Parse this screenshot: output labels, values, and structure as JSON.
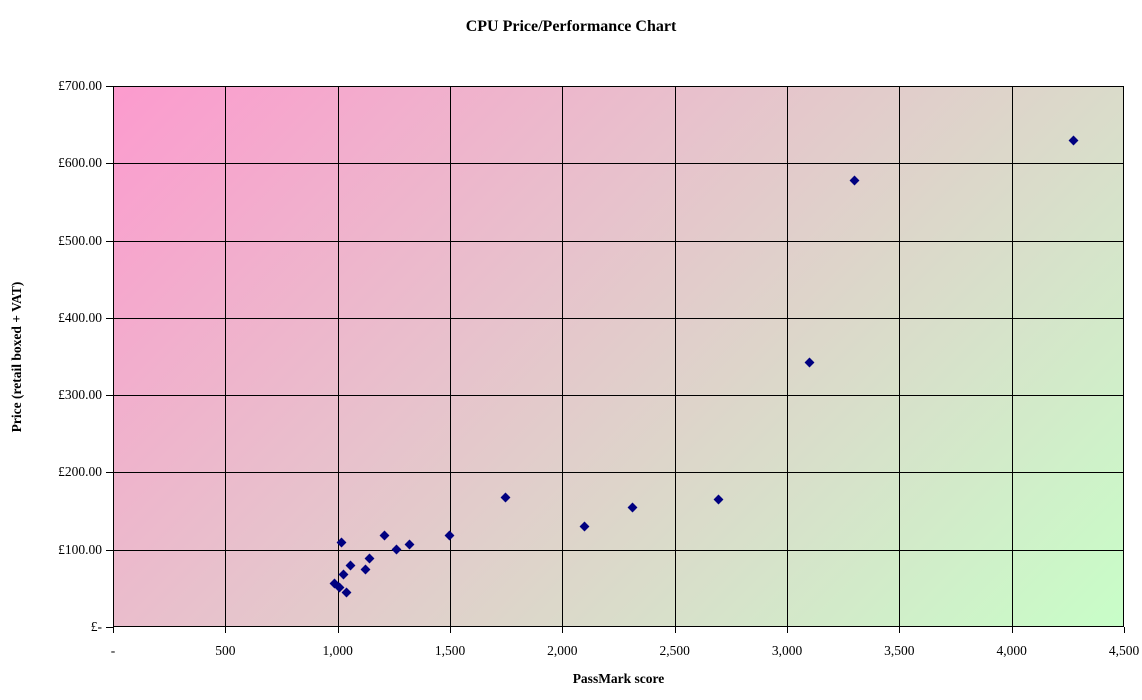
{
  "chart_data": {
    "type": "scatter",
    "title": "CPU Price/Performance Chart",
    "xlabel": "PassMark score",
    "ylabel": "Price (retail boxed + VAT)",
    "xlim": [
      0,
      4500
    ],
    "ylim": [
      0,
      700
    ],
    "grid": true,
    "legend": false,
    "marker": {
      "shape": "diamond",
      "color": "#000080",
      "size": 7
    },
    "plot_background": {
      "type": "diagonal-gradient",
      "from": "#fc9bce",
      "to": "#c8fec8"
    },
    "x_ticks": [
      {
        "value": 0,
        "label": "-"
      },
      {
        "value": 500,
        "label": "500"
      },
      {
        "value": 1000,
        "label": "1,000"
      },
      {
        "value": 1500,
        "label": "1,500"
      },
      {
        "value": 2000,
        "label": "2,000"
      },
      {
        "value": 2500,
        "label": "2,500"
      },
      {
        "value": 3000,
        "label": "3,000"
      },
      {
        "value": 3500,
        "label": "3,500"
      },
      {
        "value": 4000,
        "label": "4,000"
      },
      {
        "value": 4500,
        "label": "4,500"
      }
    ],
    "y_ticks": [
      {
        "value": 0,
        "label": "£-"
      },
      {
        "value": 100,
        "label": "£100.00"
      },
      {
        "value": 200,
        "label": "£200.00"
      },
      {
        "value": 300,
        "label": "£300.00"
      },
      {
        "value": 400,
        "label": "£400.00"
      },
      {
        "value": 500,
        "label": "£500.00"
      },
      {
        "value": 600,
        "label": "£600.00"
      },
      {
        "value": 700,
        "label": "£700.00"
      }
    ],
    "points": [
      {
        "x": 987,
        "y": 56
      },
      {
        "x": 1006,
        "y": 51
      },
      {
        "x": 1018,
        "y": 109
      },
      {
        "x": 1027,
        "y": 68
      },
      {
        "x": 1041,
        "y": 44
      },
      {
        "x": 1058,
        "y": 79
      },
      {
        "x": 1125,
        "y": 75
      },
      {
        "x": 1143,
        "y": 88
      },
      {
        "x": 1208,
        "y": 119
      },
      {
        "x": 1263,
        "y": 100
      },
      {
        "x": 1318,
        "y": 107
      },
      {
        "x": 1496,
        "y": 119
      },
      {
        "x": 1747,
        "y": 167
      },
      {
        "x": 2098,
        "y": 130
      },
      {
        "x": 2311,
        "y": 155
      },
      {
        "x": 2693,
        "y": 165
      },
      {
        "x": 3100,
        "y": 342
      },
      {
        "x": 3299,
        "y": 578
      },
      {
        "x": 4275,
        "y": 630
      }
    ]
  }
}
